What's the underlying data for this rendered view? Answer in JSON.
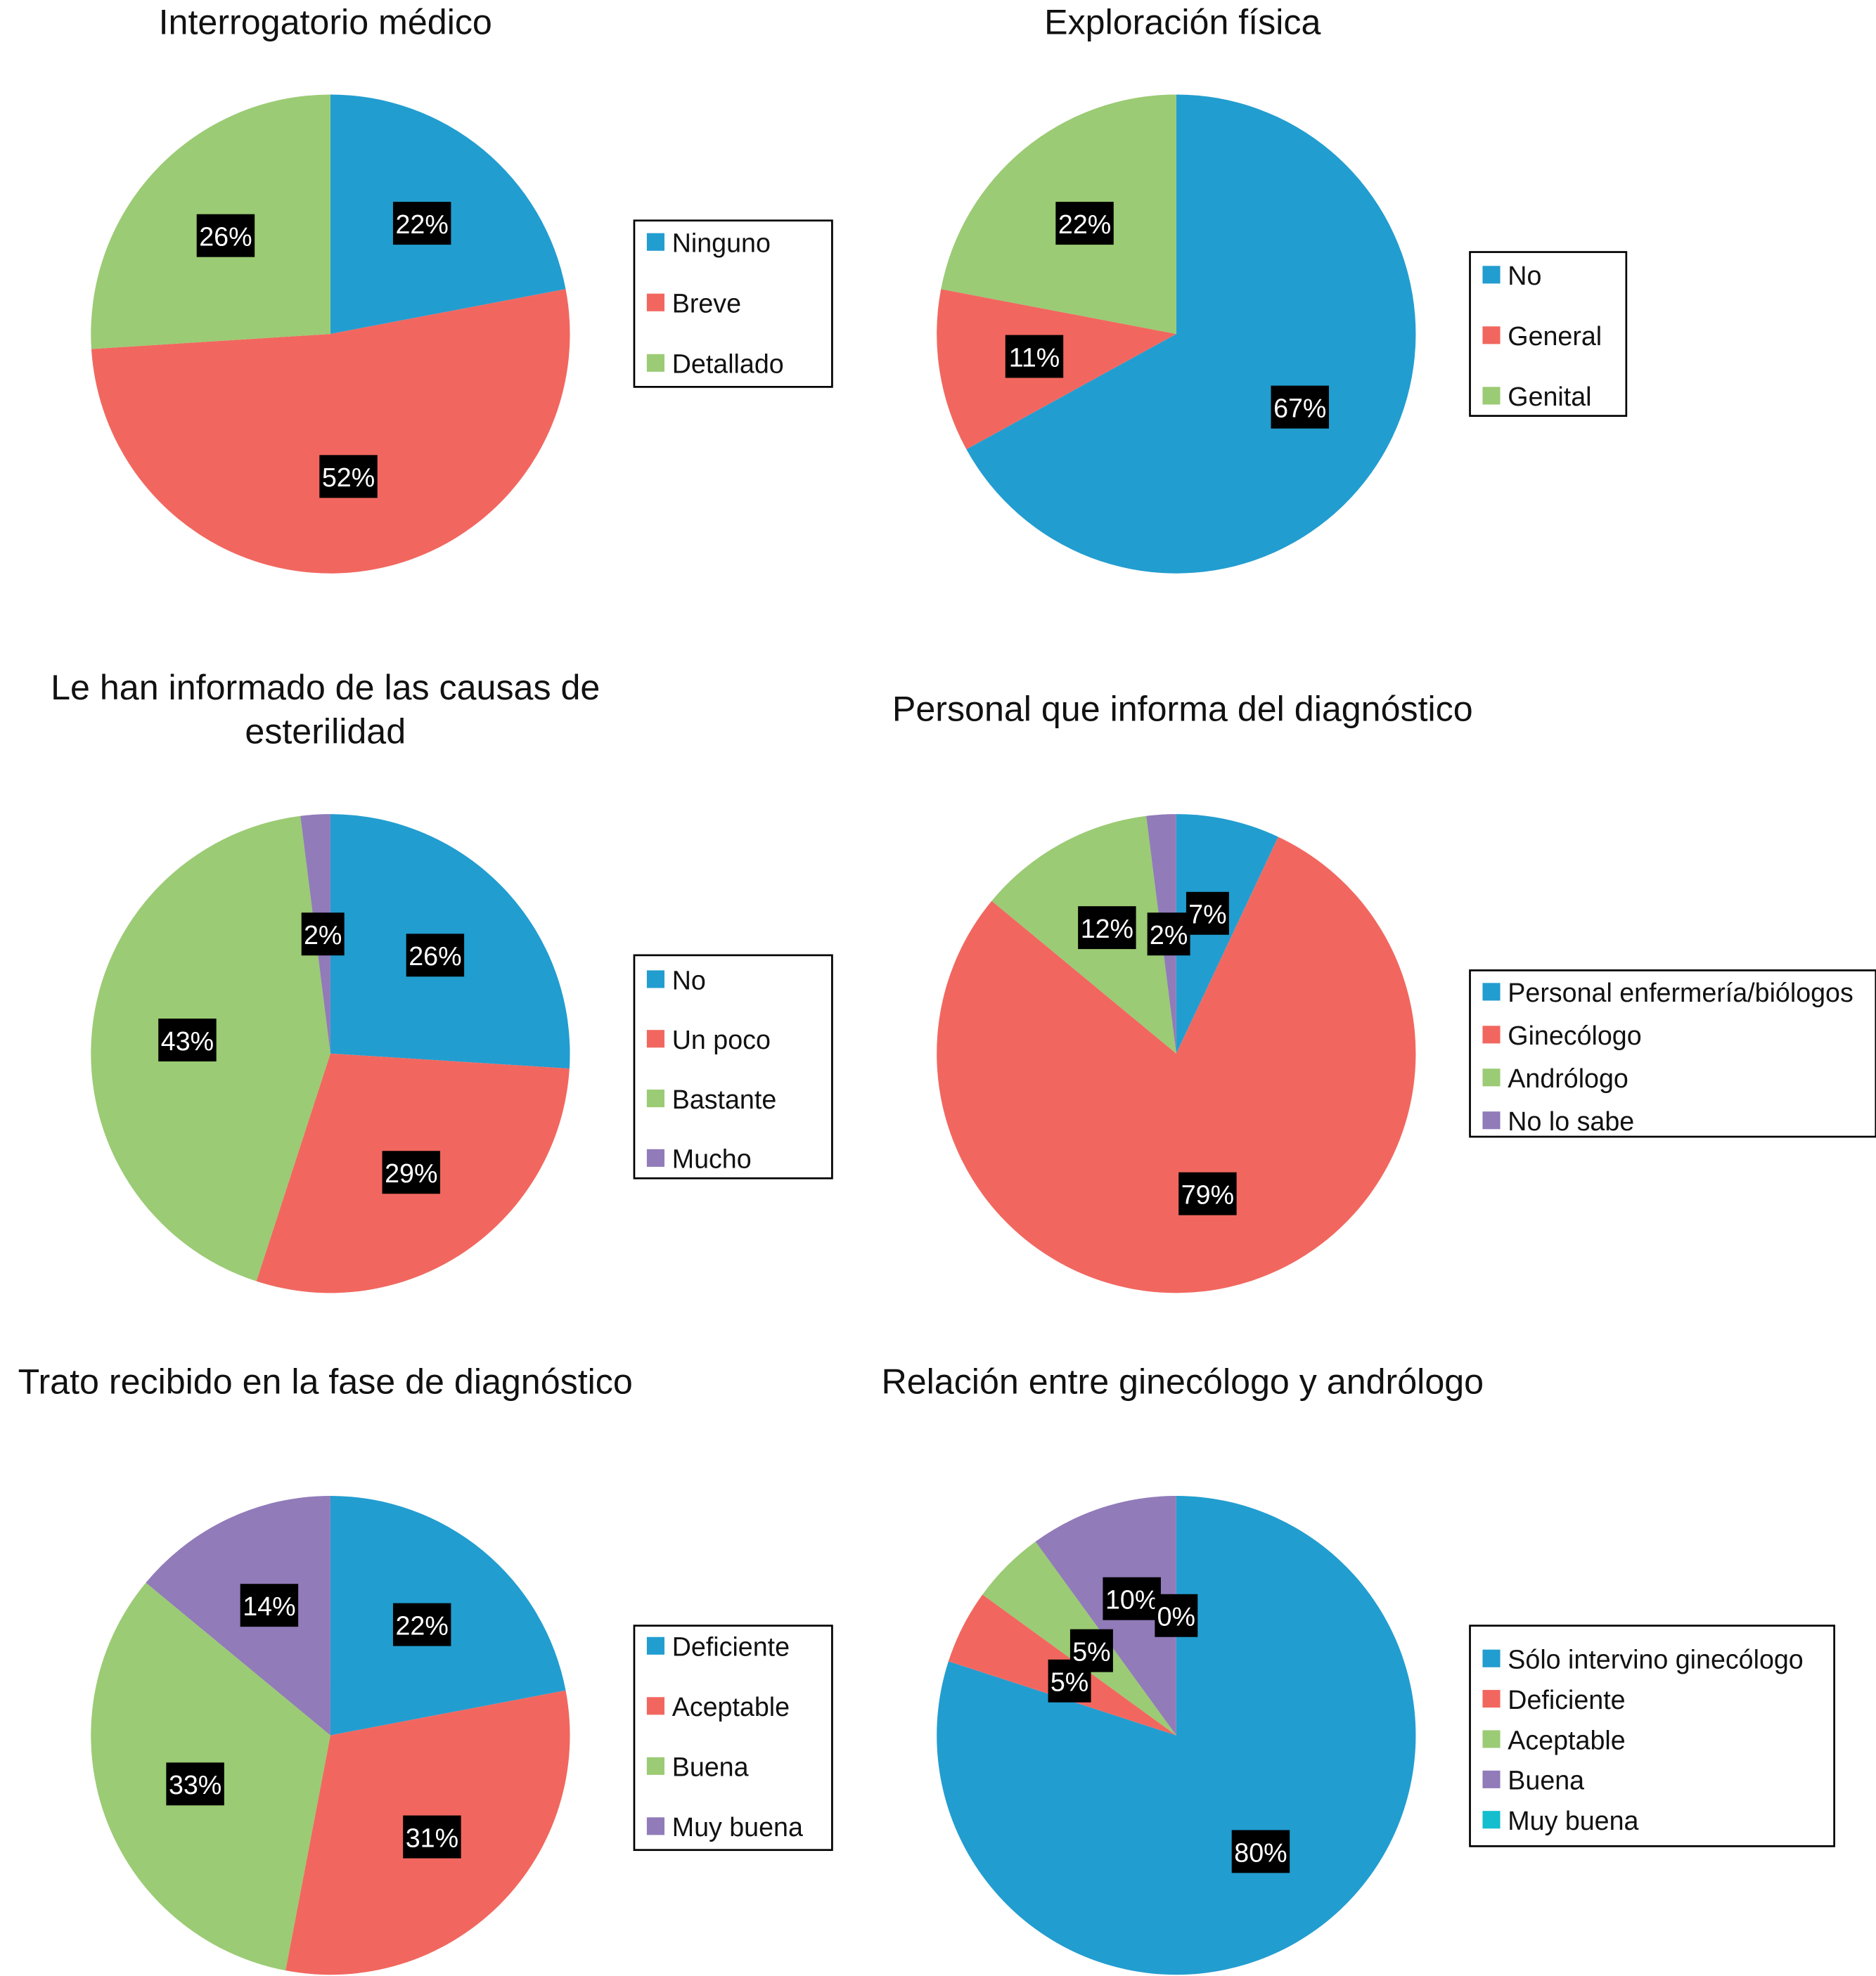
{
  "colors": {
    "blue": "#229DD0",
    "red": "#F1675F",
    "green": "#9BCB74",
    "purple": "#917BB9",
    "cyan": "#14BECE"
  },
  "chart_data": [
    {
      "type": "pie",
      "title": [
        "Interrogatorio médico"
      ],
      "categories": [
        "Ninguno",
        "Breve",
        "Detallado"
      ],
      "values": [
        22,
        52,
        26
      ],
      "labels": [
        "22%",
        "52%",
        "26%"
      ],
      "colors": [
        "#229DD0",
        "#F1675F",
        "#9BCB74"
      ],
      "legend": "right"
    },
    {
      "type": "pie",
      "title": [
        "Exploración física"
      ],
      "categories": [
        "No",
        "General",
        "Genital"
      ],
      "values": [
        67,
        11,
        22
      ],
      "labels": [
        "67%",
        "11%",
        "22%"
      ],
      "colors": [
        "#229DD0",
        "#F1675F",
        "#9BCB74"
      ],
      "legend": "right"
    },
    {
      "type": "pie",
      "title": [
        "Le han informado de las causas de",
        "esterilidad"
      ],
      "categories": [
        "No",
        "Un poco",
        "Bastante",
        "Mucho"
      ],
      "values": [
        26,
        29,
        43,
        2
      ],
      "labels": [
        "26%",
        "29%",
        "43%",
        "2%"
      ],
      "colors": [
        "#229DD0",
        "#F1675F",
        "#9BCB74",
        "#917BB9"
      ],
      "legend": "right"
    },
    {
      "type": "pie",
      "title": [
        "Personal que informa del diagnóstico"
      ],
      "categories": [
        "Personal enfermería/biólogos",
        "Ginecólogo",
        "Andrólogo",
        "No lo sabe"
      ],
      "values": [
        7,
        79,
        12,
        2
      ],
      "labels": [
        "7%",
        "79%",
        "12%",
        "2%"
      ],
      "colors": [
        "#229DD0",
        "#F1675F",
        "#9BCB74",
        "#917BB9"
      ],
      "legend": "right"
    },
    {
      "type": "pie",
      "title": [
        "Trato recibido en la fase de diagnóstico"
      ],
      "categories": [
        "Deficiente",
        "Aceptable",
        "Buena",
        "Muy buena"
      ],
      "values": [
        22,
        31,
        33,
        14
      ],
      "labels": [
        "22%",
        "31%",
        "33%",
        "14%"
      ],
      "colors": [
        "#229DD0",
        "#F1675F",
        "#9BCB74",
        "#917BB9"
      ],
      "legend": "right"
    },
    {
      "type": "pie",
      "title": [
        "Relación entre ginecólogo y andrólogo"
      ],
      "categories": [
        "Sólo intervino ginecólogo",
        "Deficiente",
        "Aceptable",
        "Buena",
        "Muy buena"
      ],
      "values": [
        80,
        5,
        5,
        10,
        0
      ],
      "labels": [
        "80%",
        "5%",
        "5%",
        "10%",
        "0%"
      ],
      "colors": [
        "#229DD0",
        "#F1675F",
        "#9BCB74",
        "#917BB9",
        "#14BECE"
      ],
      "legend": "right"
    }
  ]
}
